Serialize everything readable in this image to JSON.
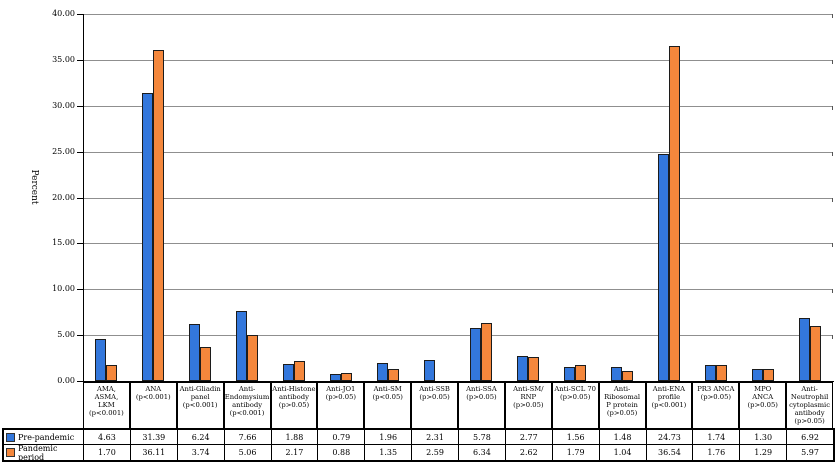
{
  "chart_data": {
    "type": "bar",
    "title": "",
    "ylabel": "Percent",
    "ylim": [
      0,
      40
    ],
    "ytick_step": 5,
    "ytick_labels": [
      "0.00",
      "5.00",
      "10.00",
      "15.00",
      "20.00",
      "25.00",
      "30.00",
      "35.00",
      "40.00"
    ],
    "grid": true,
    "legend_position": "table-left",
    "categories": [
      {
        "label": "AMA, ASMA, LKM (p<0.001)",
        "lines": [
          "AMA,",
          "ASMA,",
          "LKM",
          "(p<0.001)"
        ]
      },
      {
        "label": "ANA (p<0.001)",
        "lines": [
          "ANA",
          "(p<0.001)"
        ]
      },
      {
        "label": "Anti-Gliadin panel (p<0.001)",
        "lines": [
          "Anti-Gliadin",
          "panel",
          "(p<0.001)"
        ]
      },
      {
        "label": "Anti-Endomysium antibody (p<0.001)",
        "lines": [
          "Anti-",
          "Endomysium",
          "antibody",
          "(p<0.001)"
        ]
      },
      {
        "label": "Anti-Histone antibody (p>0.05)",
        "lines": [
          "Anti-Histone",
          "antibody",
          "(p>0.05)"
        ]
      },
      {
        "label": "Anti-JO1 (p>0.05)",
        "lines": [
          "Anti-JO1",
          "(p>0.05)"
        ]
      },
      {
        "label": "Anti-SM (p<0.05)",
        "lines": [
          "Anti-SM",
          "(p<0.05)"
        ]
      },
      {
        "label": "Anti-SSB (p>0.05)",
        "lines": [
          "Anti-SSB",
          "(p>0.05)"
        ]
      },
      {
        "label": "Anti-SSA (p>0.05)",
        "lines": [
          "Anti-SSA",
          "(p>0.05)"
        ]
      },
      {
        "label": "Anti-SM/ RNP (p>0.05)",
        "lines": [
          "Anti-SM/",
          "RNP",
          "(p>0.05)"
        ]
      },
      {
        "label": "Anti-SCL 70 (p>0.05)",
        "lines": [
          "Anti-SCL 70",
          "(p>0.05)"
        ]
      },
      {
        "label": "Anti-Ribosomal P protein (p>0.05)",
        "lines": [
          "Anti-",
          "Ribosomal",
          "P protein",
          "(p>0.05)"
        ]
      },
      {
        "label": "Anti-ENA profile (p<0.001)",
        "lines": [
          "Anti-ENA",
          "profile",
          "(p<0.001)"
        ]
      },
      {
        "label": "PR3 ANCA (p>0.05)",
        "lines": [
          "PR3 ANCA",
          "(p>0.05)"
        ]
      },
      {
        "label": "MPO ANCA (p>0.05)",
        "lines": [
          "MPO",
          "ANCA",
          "(p>0.05)"
        ]
      },
      {
        "label": "Anti-Neutrophil cytoplasmic antibody (p>0.05)",
        "lines": [
          "Anti-",
          "Neutrophil",
          "cytoplasmic",
          "antibody",
          "(p>0.05)"
        ]
      }
    ],
    "series": [
      {
        "name": "Pre-pandemic",
        "color": "#3377DC",
        "values": [
          "4.63",
          "31.39",
          "6.24",
          "7.66",
          "1.88",
          "0.79",
          "1.96",
          "2.31",
          "5.78",
          "2.77",
          "1.56",
          "1.48",
          "24.73",
          "1.74",
          "1.30",
          "6.92"
        ]
      },
      {
        "name": "Pandemic period",
        "color": "#F4873C",
        "values": [
          "1.70",
          "36.11",
          "3.74",
          "5.06",
          "2.17",
          "0.88",
          "1.35",
          "2.59",
          "6.34",
          "2.62",
          "1.79",
          "1.04",
          "36.54",
          "1.76",
          "1.29",
          "5.97"
        ]
      }
    ],
    "missing_bars": [
      {
        "series_index": 1,
        "category_index": 7
      }
    ]
  },
  "colors": {
    "pre_pandemic": "#3377DC",
    "pandemic_period": "#F4873C",
    "bar_border": "#1c1c1c",
    "gridline": "#8f8f8f",
    "axis": "#000000",
    "table_border": "#000000"
  }
}
